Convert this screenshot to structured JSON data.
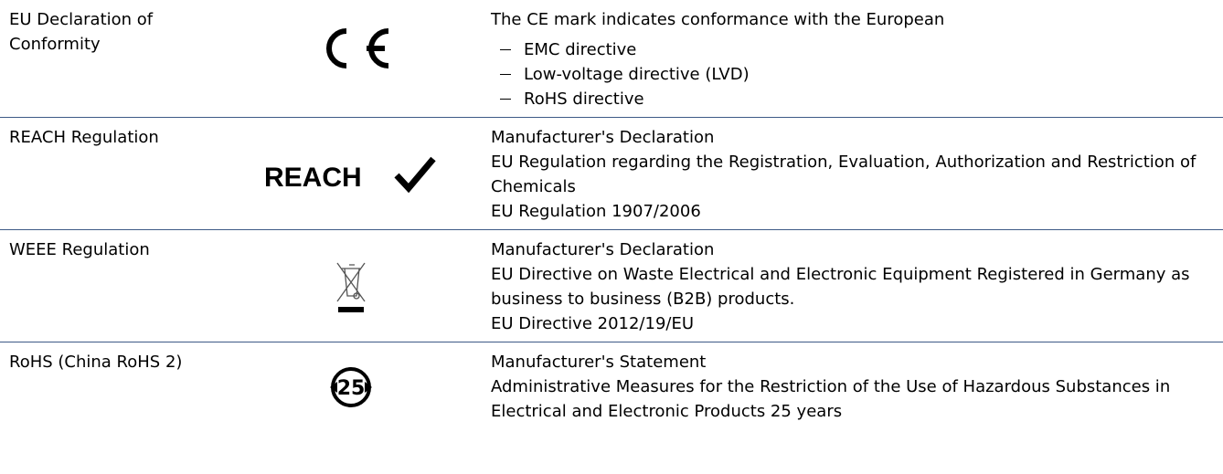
{
  "table": {
    "rows": [
      {
        "label": "EU Declaration of Conformity",
        "icon_text": null,
        "lines": [
          "The CE mark indicates conformance with the European"
        ],
        "bullets": [
          "EMC directive",
          "Low-voltage directive (LVD)",
          "RoHS directive"
        ]
      },
      {
        "label": "REACH Regulation",
        "icon_text": "REACH",
        "lines": [
          "Manufacturer's Declaration",
          "EU Regulation regarding the Registration, Evaluation, Authorization and Restriction of Chemicals",
          "EU Regulation 1907/2006"
        ],
        "bullets": []
      },
      {
        "label": "WEEE Regulation",
        "icon_text": null,
        "lines": [
          "Manufacturer's Declaration",
          "EU Directive on Waste Electrical and Electronic Equipment Registered in Germany as business to business (B2B) products.",
          "EU Directive 2012/19/EU"
        ],
        "bullets": []
      },
      {
        "label": "RoHS (China RoHS 2)",
        "icon_text": "25",
        "lines": [
          "Manufacturer's Statement",
          "Administrative Measures for the Restriction of the Use of Hazardous Substances in Electrical and Electronic Products 25 years"
        ],
        "bullets": []
      }
    ]
  }
}
